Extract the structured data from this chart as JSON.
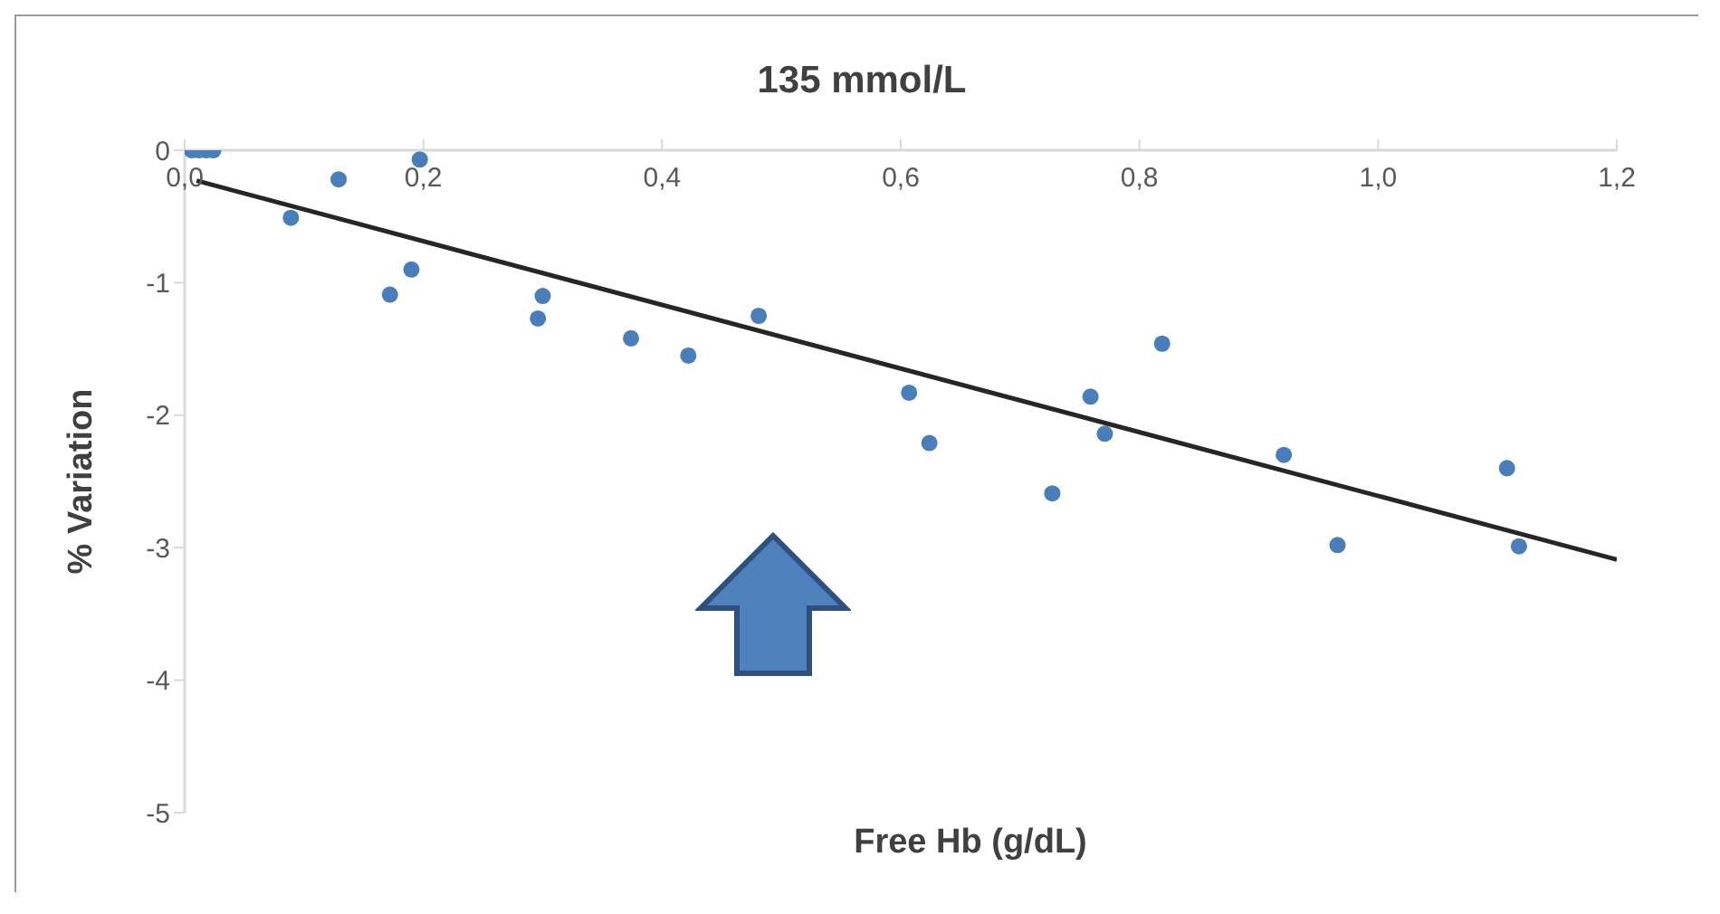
{
  "chart_data": {
    "type": "scatter",
    "title": "135 mmol/L",
    "xlabel": "Free Hb (g/dL)",
    "ylabel": "% Variation",
    "xlim": [
      0,
      1.2
    ],
    "xticks": [
      {
        "value": 0,
        "label": "0,0"
      },
      {
        "value": 0.2,
        "label": "0,2"
      },
      {
        "value": 0.4,
        "label": "0,4"
      },
      {
        "value": 0.6,
        "label": "0,6"
      },
      {
        "value": 0.8,
        "label": "0,8"
      },
      {
        "value": 1.0,
        "label": "1,0"
      },
      {
        "value": 1.2,
        "label": "1,2"
      }
    ],
    "ylim": [
      -5,
      0
    ],
    "yticks": [
      -5,
      -4,
      -3,
      -2,
      -1,
      0
    ],
    "grid": false,
    "series": [
      {
        "marker": "circle",
        "color": "#4a7ebb",
        "x": [
          0.006,
          0.012,
          0.018,
          0.024,
          0.089,
          0.129,
          0.172,
          0.19,
          0.197,
          0.296,
          0.3,
          0.374,
          0.422,
          0.481,
          0.607,
          0.624,
          0.727,
          0.759,
          0.771,
          0.819,
          0.921,
          0.966,
          1.108,
          1.118
        ],
        "values": [
          0,
          0,
          0,
          0,
          -0.51,
          -0.22,
          -1.09,
          -0.9,
          -0.07,
          -1.27,
          -1.1,
          -1.42,
          -1.55,
          -1.25,
          -1.83,
          -2.21,
          -2.59,
          -1.86,
          -2.14,
          -1.46,
          -2.3,
          -2.98,
          -2.4,
          -2.99
        ]
      },
      {
        "type": "line",
        "marker": "none",
        "color": "#262626",
        "x": [
          0.01,
          1.2
        ],
        "values": [
          -0.23,
          -3.09
        ]
      }
    ]
  }
}
